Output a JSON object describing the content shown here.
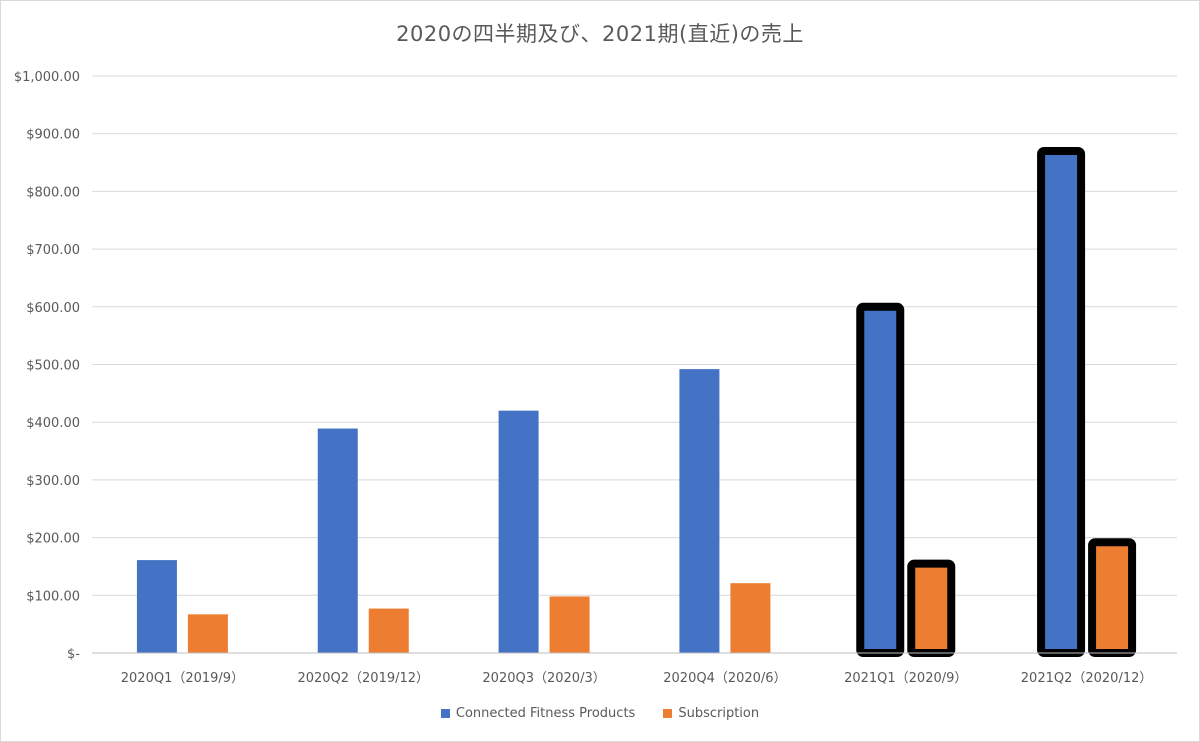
{
  "chart_data": {
    "type": "bar",
    "title": "2020の四半期及び、2021期(直近)の売上",
    "categories": [
      "2020Q1（2019/9）",
      "2020Q2（2019/12）",
      "2020Q3（2020/3）",
      "2020Q4（2020/6）",
      "2021Q1（2020/9）",
      "2021Q2（2020/12）"
    ],
    "series": [
      {
        "name": "Connected Fitness Products",
        "color": "#4472c4",
        "values": [
          161,
          389,
          420,
          492,
          600,
          870
        ]
      },
      {
        "name": "Subscription",
        "color": "#ed7d31",
        "values": [
          67,
          77,
          98,
          121,
          155,
          192
        ]
      }
    ],
    "highlighted_categories": [
      "2021Q1（2020/9）",
      "2021Q2（2020/12）"
    ],
    "ylim": [
      0,
      1000
    ],
    "yticks": [
      0,
      100,
      200,
      300,
      400,
      500,
      600,
      700,
      800,
      900,
      1000
    ],
    "ytick_labels": [
      "$-",
      "$100.00",
      "$200.00",
      "$300.00",
      "$400.00",
      "$500.00",
      "$600.00",
      "$700.00",
      "$800.00",
      "$900.00",
      "$1,000.00"
    ],
    "xlabel": "",
    "ylabel": "",
    "grid": true,
    "legend_position": "bottom"
  }
}
